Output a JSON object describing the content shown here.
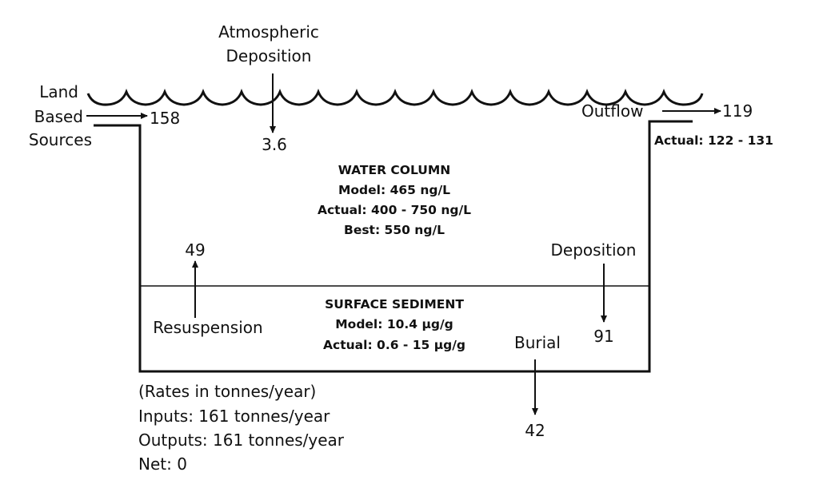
{
  "labels": {
    "atmospheric_1": "Atmospheric",
    "atmospheric_2": "Deposition",
    "land_1": "Land",
    "land_2": "Based",
    "land_3": "Sources",
    "land_value": "158",
    "atmos_value": "3.6",
    "outflow": "Outflow",
    "outflow_value": "119",
    "outflow_actual": "Actual: 122 - 131",
    "water_title": "WATER COLUMN",
    "water_model": "Model: 465 ng/L",
    "water_actual": "Actual: 400 - 750 ng/L",
    "water_best": "Best: 550 ng/L",
    "resusp_value": "49",
    "resuspension": "Resuspension",
    "deposition": "Deposition",
    "deposition_value": "91",
    "sed_title": "SURFACE SEDIMENT",
    "sed_model": "Model: 10.4 µg/g",
    "sed_actual": "Actual: 0.6 - 15 µg/g",
    "burial": "Burial",
    "burial_value": "42",
    "rates": "(Rates in tonnes/year)",
    "inputs": "Inputs: 161 tonnes/year",
    "outputs": "Outputs: 161 tonnes/year",
    "net": "Net: 0"
  }
}
